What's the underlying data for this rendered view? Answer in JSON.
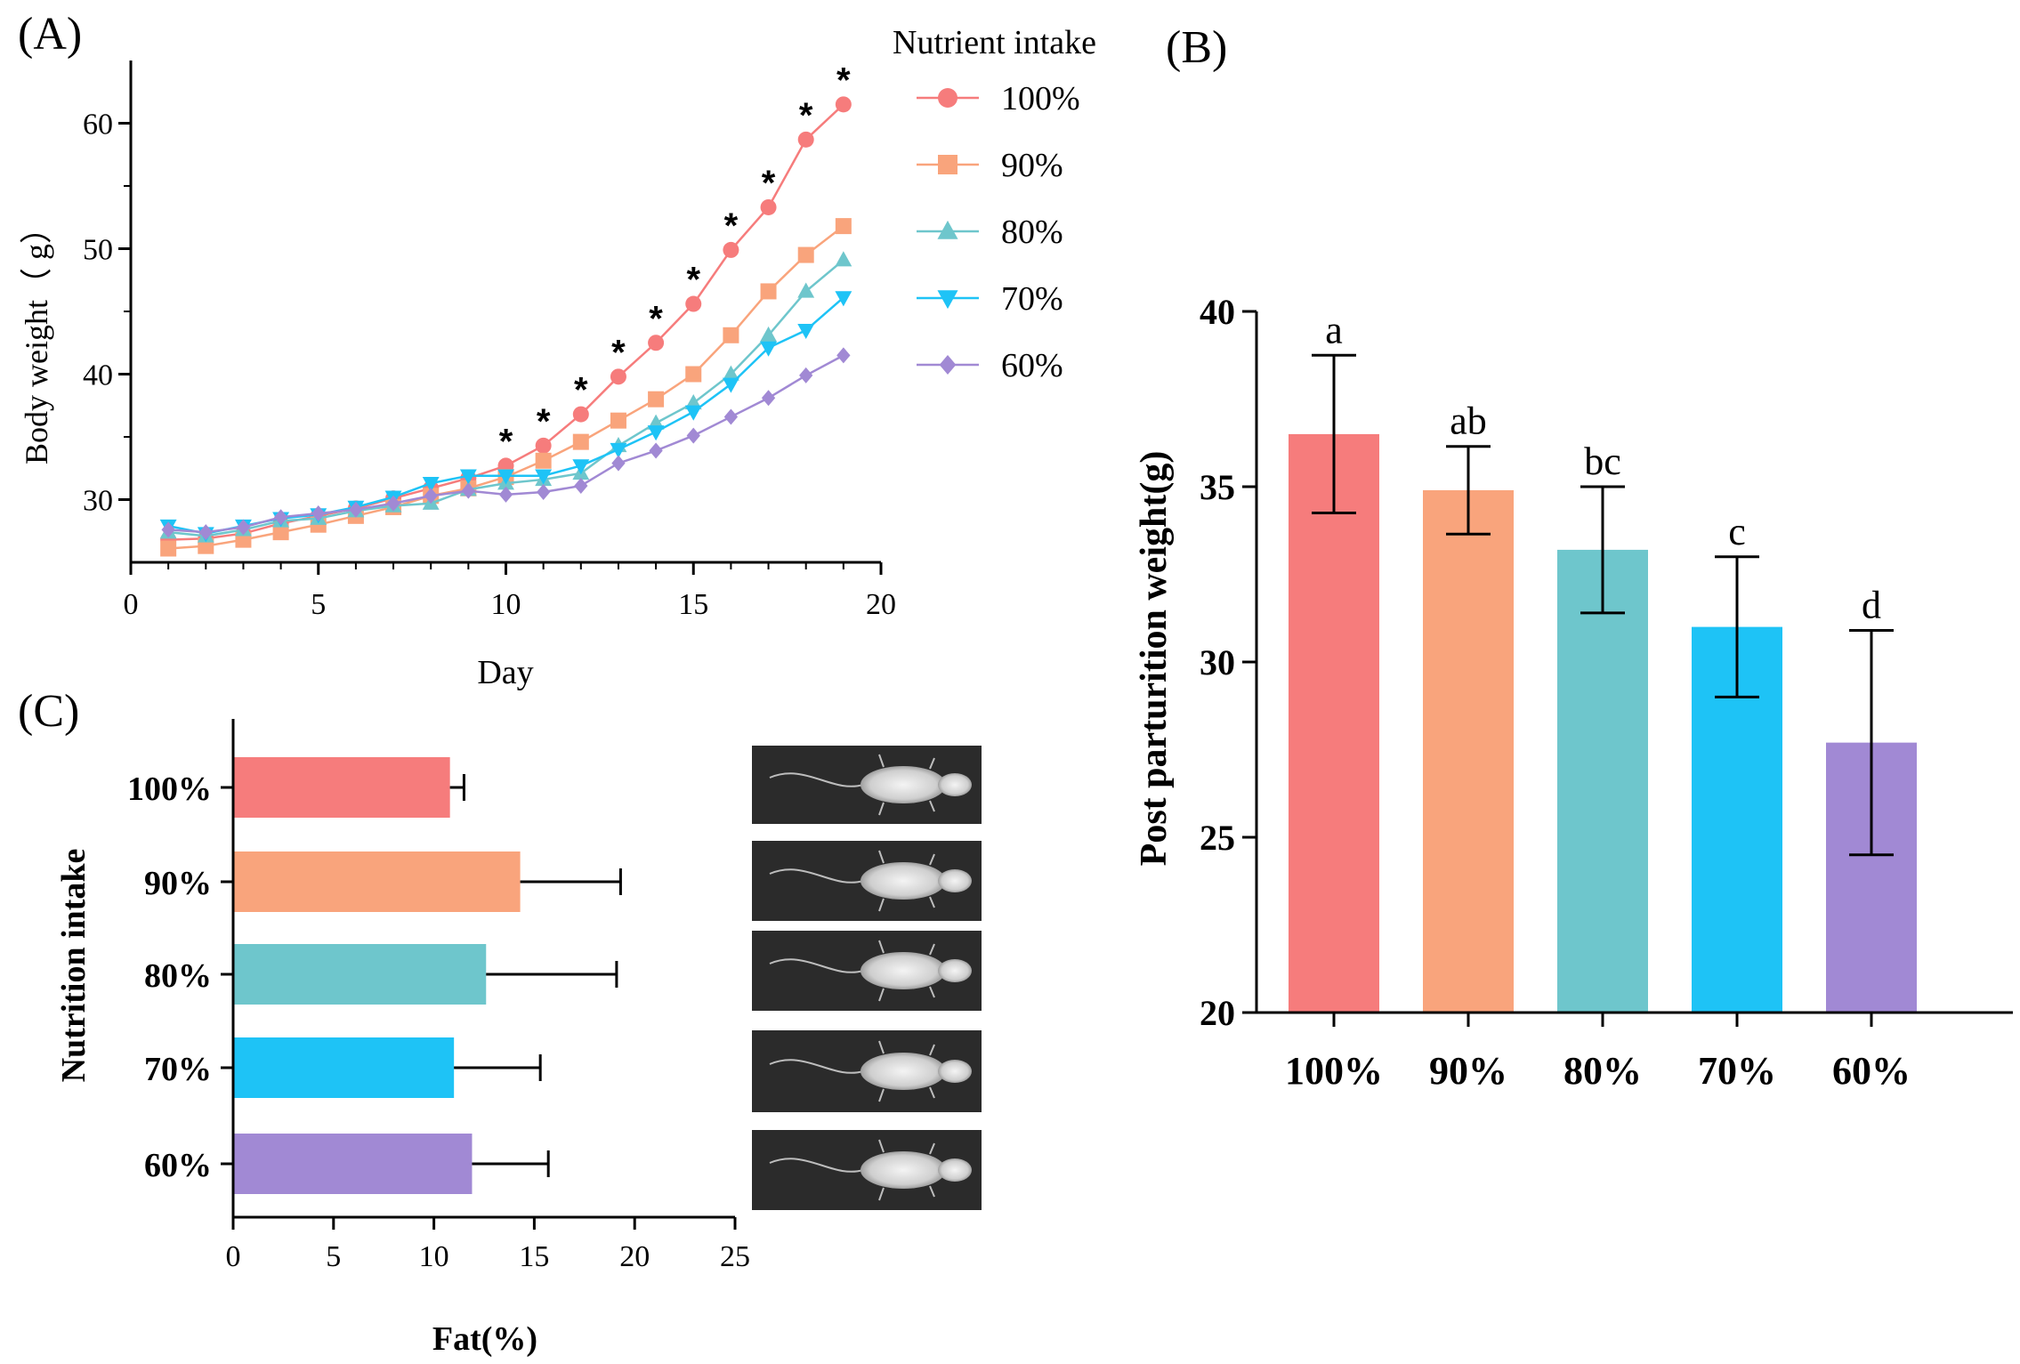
{
  "chart_data": [
    {
      "panel": "(A)",
      "type": "line",
      "xlabel": "Day",
      "ylabel": "Body weight（ g）",
      "xlim": [
        0,
        20
      ],
      "ylim": [
        25,
        65
      ],
      "xticks": [
        0,
        5,
        10,
        15,
        20
      ],
      "yticks": [
        30,
        40,
        50,
        60
      ],
      "legend_title": "Nutrient intake",
      "legend_position": "top-right",
      "x": [
        1,
        2,
        3,
        4,
        5,
        6,
        7,
        8,
        9,
        10,
        11,
        12,
        13,
        14,
        15,
        16,
        17,
        18,
        19
      ],
      "series": [
        {
          "name": "100%",
          "marker": "circle",
          "color": "#f67c7c",
          "values": [
            26.8,
            26.9,
            27.3,
            28.1,
            28.7,
            29.3,
            30.1,
            30.9,
            31.7,
            32.7,
            34.3,
            36.8,
            39.8,
            42.5,
            45.6,
            49.9,
            53.3,
            58.7,
            61.5
          ]
        },
        {
          "name": "90%",
          "marker": "square",
          "color": "#f9a47c",
          "values": [
            26.1,
            26.3,
            26.8,
            27.4,
            28.0,
            28.7,
            29.4,
            30.3,
            30.9,
            31.8,
            33.1,
            34.6,
            36.3,
            38.0,
            40.0,
            43.1,
            46.6,
            49.5,
            51.8
          ]
        },
        {
          "name": "80%",
          "marker": "triangle-up",
          "color": "#6ec6cc",
          "values": [
            27.4,
            27.1,
            27.6,
            28.3,
            28.5,
            29.1,
            29.5,
            29.7,
            30.8,
            31.3,
            31.6,
            32.1,
            34.3,
            36.1,
            37.7,
            40.0,
            43.1,
            46.6,
            49.1
          ]
        },
        {
          "name": "70%",
          "marker": "triangle-down",
          "color": "#1ec3f6",
          "values": [
            27.9,
            27.3,
            27.9,
            28.5,
            28.8,
            29.4,
            30.2,
            31.3,
            31.9,
            31.9,
            31.9,
            32.7,
            34.0,
            35.4,
            37.0,
            39.2,
            42.1,
            43.5,
            46.1
          ]
        },
        {
          "name": "60%",
          "marker": "diamond",
          "color": "#a189d4",
          "values": [
            27.6,
            27.4,
            27.8,
            28.6,
            28.9,
            29.2,
            29.7,
            30.3,
            30.7,
            30.4,
            30.6,
            31.1,
            32.9,
            33.9,
            35.1,
            36.6,
            38.1,
            39.9,
            41.5
          ]
        }
      ],
      "significance_marker": "*",
      "significant_days": [
        10,
        11,
        12,
        13,
        14,
        15,
        16,
        17,
        18,
        19
      ]
    },
    {
      "panel": "(B)",
      "type": "bar",
      "title": "",
      "xlabel": "",
      "ylabel": "Post parturition weight(g)",
      "ylim": [
        20,
        40
      ],
      "yticks": [
        20,
        25,
        30,
        35,
        40
      ],
      "categories": [
        "100%",
        "90%",
        "80%",
        "70%",
        "60%"
      ],
      "values": [
        36.5,
        34.9,
        33.2,
        31.0,
        27.7
      ],
      "errors": [
        2.25,
        1.25,
        1.8,
        2.0,
        3.2
      ],
      "letters": [
        "a",
        "ab",
        "bc",
        "c",
        "d"
      ],
      "colors": [
        "#f67c7c",
        "#f9a47c",
        "#6ec6cc",
        "#1ec3f6",
        "#a189d4"
      ]
    },
    {
      "panel": "(C)",
      "type": "bar",
      "orientation": "horizontal",
      "xlabel": "Fat(%)",
      "ylabel": "Nutrition intake",
      "xlim": [
        0,
        25
      ],
      "xticks": [
        0,
        5,
        10,
        15,
        20,
        25
      ],
      "categories": [
        "100%",
        "90%",
        "80%",
        "70%",
        "60%"
      ],
      "values": [
        10.8,
        14.3,
        12.6,
        11.0,
        11.9
      ],
      "errors": [
        0.7,
        5.0,
        6.5,
        4.3,
        3.8
      ],
      "colors": [
        "#f67c7c",
        "#f9a47c",
        "#6ec6cc",
        "#1ec3f6",
        "#a189d4"
      ]
    }
  ]
}
